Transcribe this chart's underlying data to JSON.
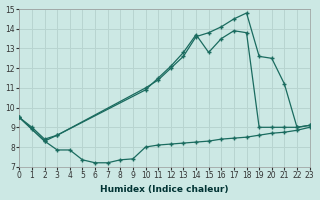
{
  "xlabel": "Humidex (Indice chaleur)",
  "background_color": "#cce8e4",
  "grid_color": "#b8d4d0",
  "line_color": "#1a6b5f",
  "xlim": [
    0,
    23
  ],
  "ylim": [
    7,
    15
  ],
  "xticks": [
    0,
    1,
    2,
    3,
    4,
    5,
    6,
    7,
    8,
    9,
    10,
    11,
    12,
    13,
    14,
    15,
    16,
    17,
    18,
    19,
    20,
    21,
    22,
    23
  ],
  "yticks": [
    7,
    8,
    9,
    10,
    11,
    12,
    13,
    14,
    15
  ],
  "curve1_x": [
    0,
    1,
    2,
    3,
    4,
    5,
    6,
    7,
    8,
    9,
    10,
    11,
    12,
    13,
    14,
    15,
    16,
    17,
    18,
    19,
    20,
    21,
    22,
    23
  ],
  "curve1_y": [
    9.5,
    8.9,
    8.3,
    7.85,
    7.85,
    7.35,
    7.2,
    7.2,
    7.35,
    7.4,
    8.0,
    8.1,
    8.15,
    8.2,
    8.25,
    8.3,
    8.4,
    8.45,
    8.5,
    8.6,
    8.7,
    8.75,
    8.85,
    9.0
  ],
  "curve2_x": [
    0,
    2,
    3,
    10,
    11,
    12,
    13,
    14,
    15,
    16,
    17,
    18,
    19,
    20,
    21,
    22,
    23
  ],
  "curve2_y": [
    9.5,
    8.3,
    8.6,
    11.0,
    11.4,
    12.0,
    12.6,
    13.6,
    13.8,
    14.1,
    14.5,
    14.8,
    12.6,
    12.5,
    11.2,
    9.0,
    9.1
  ],
  "curve3_x": [
    0,
    1,
    2,
    3,
    10,
    11,
    12,
    13,
    14,
    15,
    16,
    17,
    18,
    19,
    20,
    21,
    22,
    23
  ],
  "curve3_y": [
    9.5,
    9.0,
    8.4,
    8.6,
    10.9,
    11.5,
    12.1,
    12.8,
    13.7,
    12.8,
    13.5,
    13.9,
    13.8,
    9.0,
    9.0,
    9.0,
    9.0,
    9.1
  ]
}
